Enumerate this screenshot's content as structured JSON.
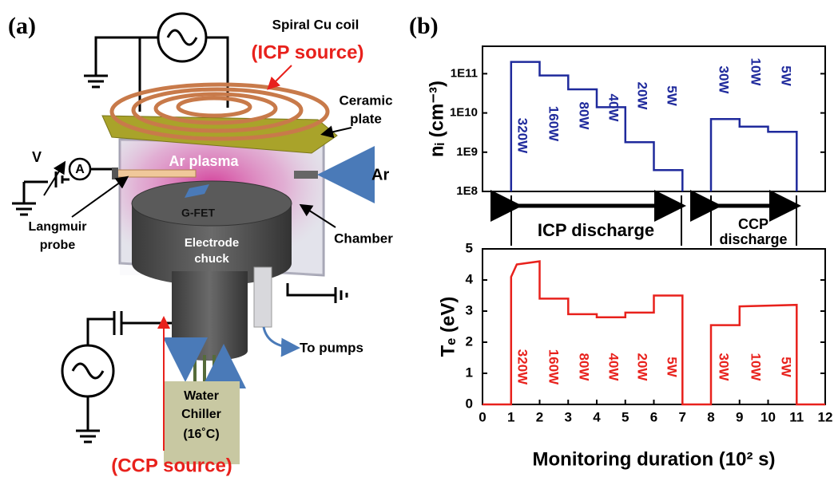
{
  "diagram": {
    "panel": "(a)",
    "coil": "Spiral Cu coil",
    "icp_source": "(ICP source)",
    "ceramic": [
      "Ceramic",
      "plate"
    ],
    "v": "V",
    "a": "A",
    "plasma": "Ar plasma",
    "gas": "Ar",
    "gfet": "G-FET",
    "probe": [
      "Langmuir",
      "probe"
    ],
    "chamber": "Chamber",
    "chuck": [
      "Electrode",
      "chuck"
    ],
    "pumps": "To pumps",
    "chiller": [
      "Water",
      "Chiller",
      "(16˚C)"
    ],
    "ccp_source": "(CCP source)"
  },
  "panel_b": "(b)",
  "chart_data": [
    {
      "type": "line",
      "ylabel": "nᵢ (cm⁻³)",
      "log_y": true,
      "xlim": [
        0,
        12
      ],
      "ylim": [
        100000000,
        500000000000
      ],
      "yticks": [
        {
          "value": 100000000,
          "label": "1E8"
        },
        {
          "value": 1000000000,
          "label": "1E9"
        },
        {
          "value": 10000000000,
          "label": "1E10"
        },
        {
          "value": 100000000000,
          "label": "1E11"
        }
      ],
      "series": [
        {
          "color": "#1f2a9c",
          "x": [
            1,
            1,
            2,
            2,
            3,
            3,
            4,
            4,
            5,
            5,
            6,
            6,
            7,
            7,
            7.5,
            8,
            8,
            9,
            9,
            10,
            10,
            11,
            11
          ],
          "values": [
            100000000,
            200000000000,
            200000000000,
            90000000000,
            90000000000,
            40000000000,
            40000000000,
            14000000000,
            14000000000,
            1800000000,
            1800000000,
            350000000,
            350000000,
            100000000,
            null,
            100000000,
            7000000000,
            7000000000,
            4500000000,
            4500000000,
            3300000000,
            3300000000,
            100000000
          ]
        }
      ],
      "power_labels": [
        "320W",
        "160W",
        "80W",
        "40W",
        "20W",
        "5W",
        "30W",
        "10W",
        "5W"
      ],
      "icp_bracket": "ICP discharge",
      "ccp_bracket": [
        "CCP",
        "discharge"
      ]
    },
    {
      "type": "line",
      "ylabel": "Tₑ (eV)",
      "xlabel": "Monitoring duration (10² s)",
      "xlim": [
        0,
        12
      ],
      "ylim": [
        0,
        5
      ],
      "xticks": [
        0,
        1,
        2,
        3,
        4,
        5,
        6,
        7,
        8,
        9,
        10,
        11,
        12
      ],
      "yticks": [
        0,
        1,
        2,
        3,
        4,
        5
      ],
      "series": [
        {
          "color": "#e8211c",
          "x": [
            0,
            1,
            1,
            1.2,
            2,
            2,
            3,
            3,
            4,
            4,
            5,
            5,
            6,
            6,
            7,
            7,
            8,
            8,
            9,
            9,
            11,
            11,
            12
          ],
          "values": [
            0,
            0,
            4.1,
            4.5,
            4.6,
            3.4,
            3.4,
            2.9,
            2.9,
            2.8,
            2.8,
            2.95,
            2.95,
            3.5,
            3.5,
            0,
            0,
            2.55,
            2.55,
            3.15,
            3.2,
            0,
            0
          ]
        }
      ],
      "power_labels": [
        "320W",
        "160W",
        "80W",
        "40W",
        "20W",
        "5W",
        "30W",
        "10W",
        "5W"
      ]
    }
  ]
}
